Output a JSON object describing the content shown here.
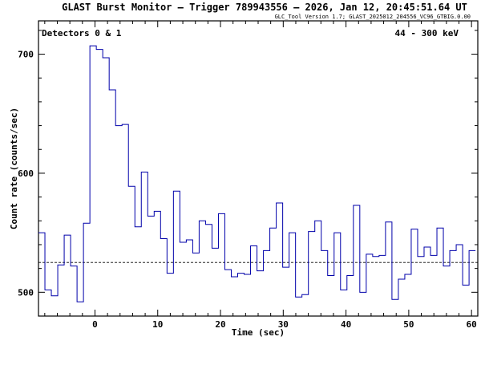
{
  "chart_data": {
    "type": "line",
    "title": "GLAST Burst Monitor  –  Trigger 789943556  –  2026, Jan 12, 20:45:51.64 UT",
    "subtitle": "GLC_Tool Version 1.7; GLAST_2025012_204556_VC96_GTBIG.0.00",
    "xlabel": "Time (sec)",
    "ylabel": "Count rate (counts/sec)",
    "xlim": [
      -9.0,
      61.0
    ],
    "ylim": [
      480,
      728
    ],
    "x_ticks": [
      0,
      10,
      20,
      30,
      40,
      50,
      60
    ],
    "y_ticks": [
      500,
      600,
      700
    ],
    "x_tick_labels": [
      "0",
      "10",
      "20",
      "30",
      "40",
      "50",
      "60"
    ],
    "y_tick_labels": [
      "500",
      "600",
      "700"
    ],
    "grid": false,
    "step_style": "histogram",
    "bin_width": 1.024,
    "background_level": 525,
    "annotations": {
      "detectors": "Detectors 0 & 1",
      "energy_range": "44 - 300 keV"
    },
    "series": [
      {
        "color": "#0000aa",
        "bin_edges_start": -9.0,
        "values": [
          550,
          502,
          497,
          523,
          548,
          522,
          492,
          558,
          707,
          704,
          697,
          670,
          640,
          641,
          589,
          555,
          601,
          564,
          568,
          545,
          516,
          585,
          542,
          544,
          533,
          560,
          557,
          537,
          566,
          519,
          513,
          516,
          515,
          539,
          518,
          535,
          554,
          575,
          521,
          550,
          496,
          498,
          551,
          560,
          535,
          514,
          550,
          502,
          514,
          573,
          500,
          532,
          530,
          531,
          559,
          494,
          511,
          515,
          553,
          530,
          538,
          531,
          554,
          522,
          535,
          540,
          506,
          535
        ]
      }
    ],
    "reference_lines": [
      {
        "y": 525,
        "style": "dashed",
        "color": "#000000"
      }
    ]
  }
}
